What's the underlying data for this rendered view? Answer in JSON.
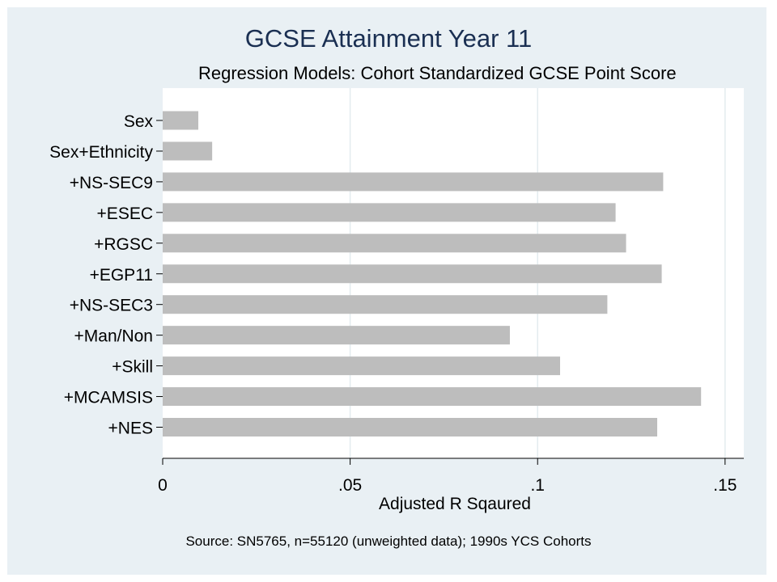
{
  "chart_data": {
    "type": "bar",
    "orientation": "horizontal",
    "title": "GCSE Attainment Year 11",
    "subtitle": "Regression Models: Cohort Standardized GCSE Point Score",
    "xlabel": "Adjusted R Sqaured",
    "ylabel": "",
    "categories": [
      "Sex",
      "Sex+Ethnicity",
      "+NS-SEC9",
      "+ESEC",
      "+RGSC",
      "+EGP11",
      "+NS-SEC3",
      "+Man/Non",
      "+Skill",
      "+MCAMSIS",
      "+NES"
    ],
    "values": [
      0.0095,
      0.0132,
      0.1335,
      0.1208,
      0.1236,
      0.1331,
      0.1186,
      0.0926,
      0.106,
      0.1436,
      0.1319
    ],
    "xlim": [
      0,
      0.155
    ],
    "xticks": [
      0,
      0.05,
      0.1,
      0.15
    ],
    "xtick_labels": [
      "0",
      ".05",
      ".1",
      ".15"
    ],
    "grid": true,
    "bar_color": "#bdbdbd",
    "note": "Source: SN5765, n=55120 (unweighted data); 1990s YCS Cohorts"
  },
  "colors": {
    "outer_background": "#e9f0f4",
    "plot_background": "#ffffff",
    "title_color": "#1a2f52",
    "gridline": "#e3ecef"
  }
}
